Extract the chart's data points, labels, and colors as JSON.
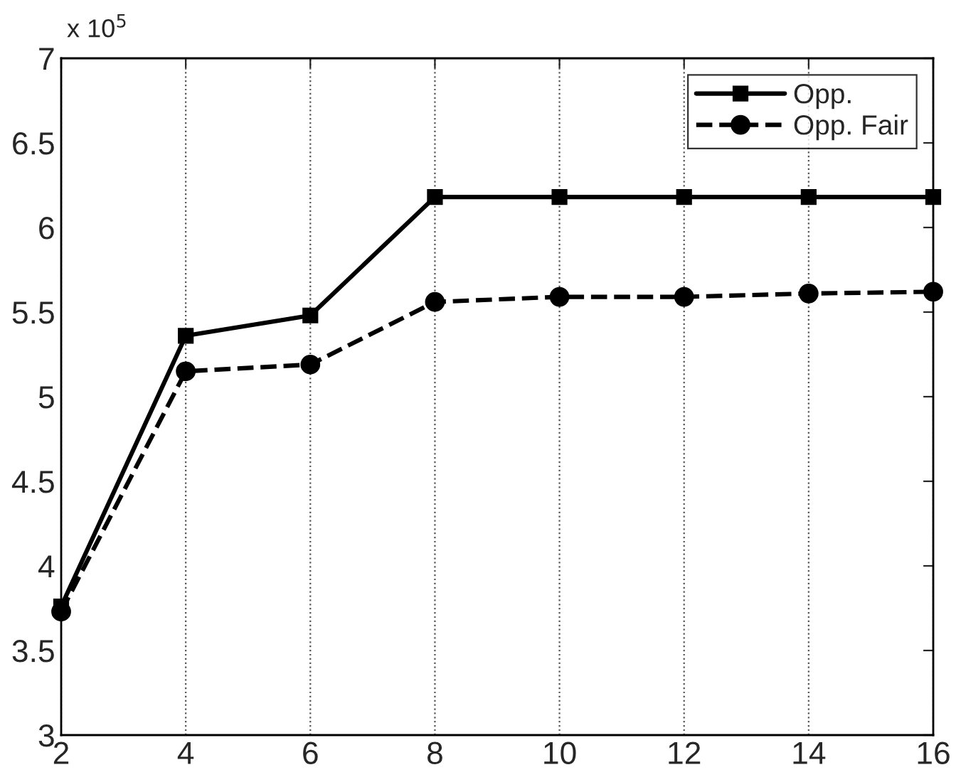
{
  "chart_data": {
    "type": "line",
    "x": [
      2,
      4,
      6,
      8,
      10,
      12,
      14,
      16
    ],
    "series": [
      {
        "name": "Opp.",
        "color": "#000000",
        "marker": "square",
        "line_style": "solid",
        "values": [
          3.76,
          5.36,
          5.48,
          6.18,
          6.18,
          6.18,
          6.18,
          6.18
        ]
      },
      {
        "name": "Opp. Fair",
        "color": "#000000",
        "marker": "circle",
        "line_style": "dashed",
        "values": [
          3.73,
          5.15,
          5.19,
          5.56,
          5.59,
          5.59,
          5.61,
          5.62
        ]
      }
    ],
    "xlim": [
      2,
      16
    ],
    "xticks": [
      2,
      4,
      6,
      8,
      10,
      12,
      14,
      16
    ],
    "ylim": [
      3,
      7
    ],
    "yticks": [
      3,
      3.5,
      4,
      4.5,
      5,
      5.5,
      6,
      6.5,
      7
    ],
    "grid": "x",
    "legend": "top right",
    "annotations": [
      "x 10$^{5}$"
    ]
  }
}
